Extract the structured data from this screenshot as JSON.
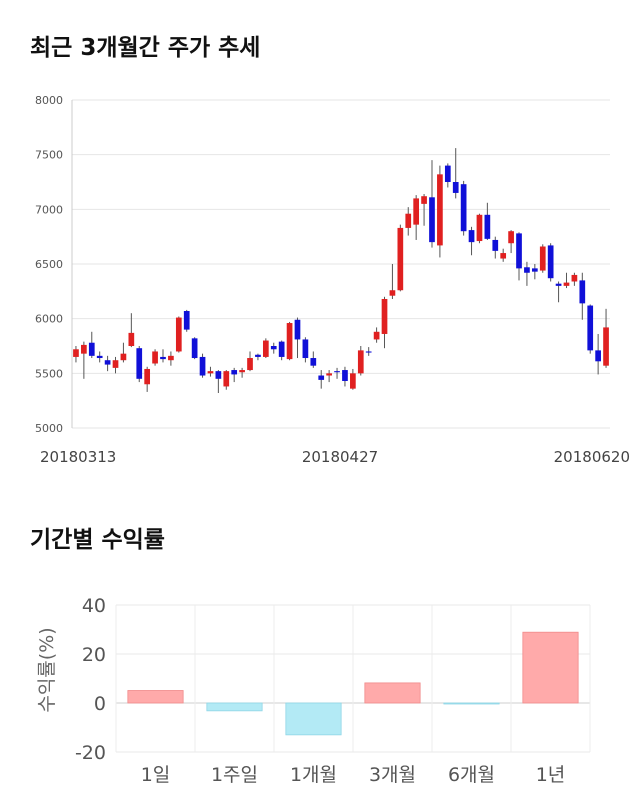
{
  "sections": {
    "price_title": "최근 3개월간 주가 추세",
    "returns_title": "기간별 수익률"
  },
  "chart_data": [
    {
      "type": "candlestick",
      "ylim": [
        5000,
        8000
      ],
      "yticks": [
        5000,
        5500,
        6000,
        6500,
        7000,
        7500,
        8000
      ],
      "xticks": [
        "20180313",
        "20180427",
        "20180620"
      ],
      "grid": true,
      "up_color": "#e02020",
      "down_color": "#1010d8",
      "candles": [
        {
          "o": 5650,
          "c": 5720,
          "h": 5750,
          "l": 5600
        },
        {
          "o": 5680,
          "c": 5760,
          "h": 5790,
          "l": 5450
        },
        {
          "o": 5780,
          "c": 5660,
          "h": 5880,
          "l": 5640
        },
        {
          "o": 5660,
          "c": 5640,
          "h": 5700,
          "l": 5600
        },
        {
          "o": 5620,
          "c": 5580,
          "h": 5660,
          "l": 5520
        },
        {
          "o": 5550,
          "c": 5620,
          "h": 5650,
          "l": 5500
        },
        {
          "o": 5620,
          "c": 5680,
          "h": 5780,
          "l": 5600
        },
        {
          "o": 5750,
          "c": 5870,
          "h": 6050,
          "l": 5740
        },
        {
          "o": 5730,
          "c": 5450,
          "h": 5750,
          "l": 5420
        },
        {
          "o": 5400,
          "c": 5540,
          "h": 5560,
          "l": 5330
        },
        {
          "o": 5590,
          "c": 5700,
          "h": 5720,
          "l": 5570
        },
        {
          "o": 5650,
          "c": 5630,
          "h": 5720,
          "l": 5600
        },
        {
          "o": 5620,
          "c": 5660,
          "h": 5700,
          "l": 5570
        },
        {
          "o": 5700,
          "c": 6010,
          "h": 6020,
          "l": 5690
        },
        {
          "o": 6070,
          "c": 5900,
          "h": 6080,
          "l": 5880
        },
        {
          "o": 5820,
          "c": 5640,
          "h": 5830,
          "l": 5630
        },
        {
          "o": 5650,
          "c": 5480,
          "h": 5680,
          "l": 5460
        },
        {
          "o": 5500,
          "c": 5520,
          "h": 5560,
          "l": 5470
        },
        {
          "o": 5520,
          "c": 5450,
          "h": 5530,
          "l": 5320
        },
        {
          "o": 5380,
          "c": 5520,
          "h": 5530,
          "l": 5350
        },
        {
          "o": 5530,
          "c": 5490,
          "h": 5550,
          "l": 5420
        },
        {
          "o": 5510,
          "c": 5530,
          "h": 5550,
          "l": 5460
        },
        {
          "o": 5530,
          "c": 5640,
          "h": 5700,
          "l": 5520
        },
        {
          "o": 5670,
          "c": 5650,
          "h": 5680,
          "l": 5620
        },
        {
          "o": 5650,
          "c": 5800,
          "h": 5820,
          "l": 5640
        },
        {
          "o": 5750,
          "c": 5720,
          "h": 5780,
          "l": 5680
        },
        {
          "o": 5790,
          "c": 5650,
          "h": 5800,
          "l": 5620
        },
        {
          "o": 5630,
          "c": 5960,
          "h": 5970,
          "l": 5620
        },
        {
          "o": 5990,
          "c": 5810,
          "h": 6010,
          "l": 5640
        },
        {
          "o": 5810,
          "c": 5640,
          "h": 5830,
          "l": 5600
        },
        {
          "o": 5640,
          "c": 5570,
          "h": 5700,
          "l": 5550
        },
        {
          "o": 5480,
          "c": 5440,
          "h": 5530,
          "l": 5360
        },
        {
          "o": 5480,
          "c": 5500,
          "h": 5530,
          "l": 5420
        },
        {
          "o": 5520,
          "c": 5510,
          "h": 5550,
          "l": 5450
        },
        {
          "o": 5530,
          "c": 5430,
          "h": 5560,
          "l": 5380
        },
        {
          "o": 5360,
          "c": 5500,
          "h": 5540,
          "l": 5350
        },
        {
          "o": 5500,
          "c": 5710,
          "h": 5750,
          "l": 5480
        },
        {
          "o": 5700,
          "c": 5690,
          "h": 5740,
          "l": 5660
        },
        {
          "o": 5810,
          "c": 5880,
          "h": 5920,
          "l": 5780
        },
        {
          "o": 5860,
          "c": 6180,
          "h": 6200,
          "l": 5730
        },
        {
          "o": 6210,
          "c": 6260,
          "h": 6500,
          "l": 6180
        },
        {
          "o": 6260,
          "c": 6830,
          "h": 6860,
          "l": 6250
        },
        {
          "o": 6830,
          "c": 6960,
          "h": 7020,
          "l": 6760
        },
        {
          "o": 6860,
          "c": 7100,
          "h": 7130,
          "l": 6720
        },
        {
          "o": 7050,
          "c": 7120,
          "h": 7140,
          "l": 6850
        },
        {
          "o": 7110,
          "c": 6700,
          "h": 7450,
          "l": 6650
        },
        {
          "o": 6670,
          "c": 7320,
          "h": 7400,
          "l": 6560
        },
        {
          "o": 7400,
          "c": 7250,
          "h": 7420,
          "l": 7200
        },
        {
          "o": 7250,
          "c": 7150,
          "h": 7560,
          "l": 7100
        },
        {
          "o": 7230,
          "c": 6800,
          "h": 7260,
          "l": 6760
        },
        {
          "o": 6810,
          "c": 6700,
          "h": 6840,
          "l": 6580
        },
        {
          "o": 6710,
          "c": 6950,
          "h": 6960,
          "l": 6690
        },
        {
          "o": 6950,
          "c": 6730,
          "h": 7060,
          "l": 6720
        },
        {
          "o": 6720,
          "c": 6620,
          "h": 6750,
          "l": 6550
        },
        {
          "o": 6550,
          "c": 6600,
          "h": 6640,
          "l": 6520
        },
        {
          "o": 6690,
          "c": 6800,
          "h": 6810,
          "l": 6600
        },
        {
          "o": 6780,
          "c": 6460,
          "h": 6790,
          "l": 6350
        },
        {
          "o": 6470,
          "c": 6420,
          "h": 6520,
          "l": 6300
        },
        {
          "o": 6460,
          "c": 6430,
          "h": 6500,
          "l": 6360
        },
        {
          "o": 6440,
          "c": 6660,
          "h": 6680,
          "l": 6420
        },
        {
          "o": 6670,
          "c": 6370,
          "h": 6690,
          "l": 6340
        },
        {
          "o": 6320,
          "c": 6300,
          "h": 6340,
          "l": 6150
        },
        {
          "o": 6300,
          "c": 6330,
          "h": 6420,
          "l": 6280
        },
        {
          "o": 6340,
          "c": 6400,
          "h": 6420,
          "l": 6300
        },
        {
          "o": 6350,
          "c": 6140,
          "h": 6420,
          "l": 5990
        },
        {
          "o": 6120,
          "c": 5710,
          "h": 6130,
          "l": 5680
        },
        {
          "o": 5710,
          "c": 5610,
          "h": 5860,
          "l": 5490
        },
        {
          "o": 5570,
          "c": 5920,
          "h": 6090,
          "l": 5550
        }
      ]
    },
    {
      "type": "bar",
      "ylabel": "수익률(%)",
      "ylim": [
        -20,
        40
      ],
      "yticks": [
        -20,
        0,
        20,
        40
      ],
      "grid": true,
      "categories": [
        "1일",
        "1주일",
        "1개월",
        "3개월",
        "6개월",
        "1년"
      ],
      "values": [
        5.1,
        -3.2,
        -13.0,
        8.2,
        -0.4,
        28.9
      ],
      "positive_color": "#ffaaaa",
      "negative_color": "#b3eaf5"
    }
  ]
}
